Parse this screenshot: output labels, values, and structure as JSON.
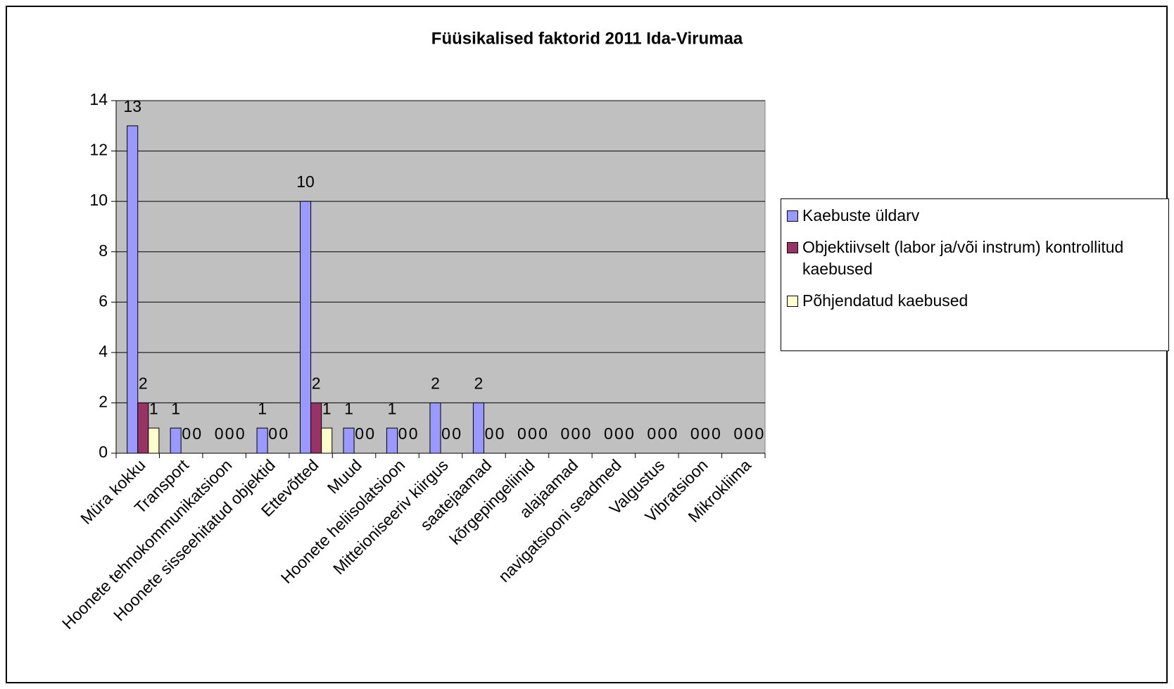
{
  "chart_data": {
    "type": "bar",
    "title": "Füüsikalised faktorid 2011 Ida-Virumaa",
    "categories": [
      "Müra kokku",
      "Transport",
      "Hoonete tehnokommunikatsioon",
      "Hoonete sisseehitatud objektid",
      "Ettevõtted",
      "Muud",
      "Hoonete heliisolatsioon",
      "Mitteioniseeriv kiirgus",
      "saatejaamad",
      "kõrgepingeliinid",
      "alajaamad",
      "navigatsiooni seadmed",
      "Valgustus",
      "Vibratsioon",
      "Mikrokliima"
    ],
    "series": [
      {
        "name": "Kaebuste üldarv",
        "color": "#9999ff",
        "values": [
          13,
          1,
          0,
          1,
          10,
          1,
          1,
          2,
          2,
          0,
          0,
          0,
          0,
          0,
          0
        ]
      },
      {
        "name": "Objektiivselt (labor ja/või instrum) kontrollitud kaebused",
        "color": "#993366",
        "values": [
          2,
          0,
          0,
          0,
          2,
          0,
          0,
          0,
          0,
          0,
          0,
          0,
          0,
          0,
          0
        ]
      },
      {
        "name": "Põhjendatud kaebused",
        "color": "#ffffcc",
        "values": [
          1,
          0,
          0,
          0,
          1,
          0,
          0,
          0,
          0,
          0,
          0,
          0,
          0,
          0,
          0
        ]
      }
    ],
    "ylim": [
      0,
      14
    ],
    "yticks": [
      0,
      2,
      4,
      6,
      8,
      10,
      12,
      14
    ],
    "grid": true,
    "plot_background": "#c0c0c0",
    "legend": "right"
  }
}
